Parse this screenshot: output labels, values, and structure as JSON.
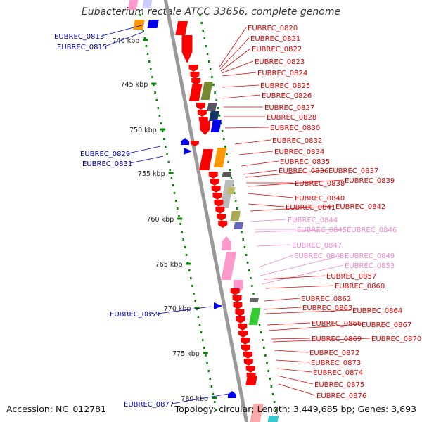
{
  "title": "Eubacterium rectale ATCC 33656, complete genome",
  "accession": "Accession: NC_012781",
  "topology_summary": "Topology: circular; Length: 3,449,685 bp; Genes: 3,693",
  "scale_labels": [
    "740 kbp",
    "745 kbp",
    "750 kbp",
    "755 kbp",
    "760 kbp",
    "765 kbp",
    "770 kbp",
    "775 kbp",
    "780 kbp"
  ],
  "colors": {
    "red_label": "#dd0000",
    "pink_label": "#ee88cc",
    "blue_label": "#0000aa",
    "backbone": "#999999",
    "ticks": "#008800",
    "red_feature": "#ff0000",
    "orange_feature": "#ff9900",
    "olive_feature": "#778833",
    "pink_feature": "#ff99cc",
    "blue_feature": "#0000ee"
  },
  "left_labels": [
    {
      "text": "EUBREC_0813"
    },
    {
      "text": "EUBREC_0815"
    },
    {
      "text": "EUBREC_0829"
    },
    {
      "text": "EUBREC_0831"
    },
    {
      "text": "EUBREC_0859"
    },
    {
      "text": "EUBREC_0877"
    }
  ],
  "right_labels": [
    {
      "text": "EUBREC_0820",
      "color": "red"
    },
    {
      "text": "EUBREC_0821",
      "color": "red"
    },
    {
      "text": "EUBREC_0822",
      "color": "red"
    },
    {
      "text": "EUBREC_0823",
      "color": "red"
    },
    {
      "text": "EUBREC_0824",
      "color": "red"
    },
    {
      "text": "EUBREC_0825",
      "color": "red"
    },
    {
      "text": "EUBREC_0826",
      "color": "red"
    },
    {
      "text": "EUBREC_0827",
      "color": "red"
    },
    {
      "text": "EUBREC_0828",
      "color": "red"
    },
    {
      "text": "EUBREC_0830",
      "color": "red"
    },
    {
      "text": "EUBREC_0832",
      "color": "red"
    },
    {
      "text": "EUBREC_0834",
      "color": "red"
    },
    {
      "text": "EUBREC_0835",
      "color": "red"
    },
    {
      "text": "EUBREC_0836",
      "color": "red"
    },
    {
      "text": "EUBREC_0837",
      "color": "red"
    },
    {
      "text": "EUBREC_0838",
      "color": "red"
    },
    {
      "text": "EUBREC_0839",
      "color": "red"
    },
    {
      "text": "EUBREC_0840",
      "color": "red"
    },
    {
      "text": "EUBREC_0841",
      "color": "red"
    },
    {
      "text": "EUBREC_0842",
      "color": "red"
    },
    {
      "text": "EUBREC_0844",
      "color": "pink"
    },
    {
      "text": "EUBREC_0845",
      "color": "pink"
    },
    {
      "text": "EUBREC_0846",
      "color": "pink"
    },
    {
      "text": "EUBREC_0847",
      "color": "pink"
    },
    {
      "text": "EUBREC_0848",
      "color": "pink"
    },
    {
      "text": "EUBREC_0849",
      "color": "pink"
    },
    {
      "text": "EUBREC_0853",
      "color": "pink"
    },
    {
      "text": "EUBREC_0857",
      "color": "red"
    },
    {
      "text": "EUBREC_0860",
      "color": "red"
    },
    {
      "text": "EUBREC_0862",
      "color": "red"
    },
    {
      "text": "EUBREC_0863",
      "color": "red"
    },
    {
      "text": "EUBREC_0864",
      "color": "red"
    },
    {
      "text": "EUBREC_0866",
      "color": "red"
    },
    {
      "text": "EUBREC_0867",
      "color": "red"
    },
    {
      "text": "EUBREC_0869",
      "color": "red"
    },
    {
      "text": "EUBREC_0870",
      "color": "red"
    },
    {
      "text": "EUBREC_0872",
      "color": "red"
    },
    {
      "text": "EUBREC_0873",
      "color": "red"
    },
    {
      "text": "EUBREC_0874",
      "color": "red"
    },
    {
      "text": "EUBREC_0875",
      "color": "red"
    },
    {
      "text": "EUBREC_0876",
      "color": "red"
    }
  ]
}
